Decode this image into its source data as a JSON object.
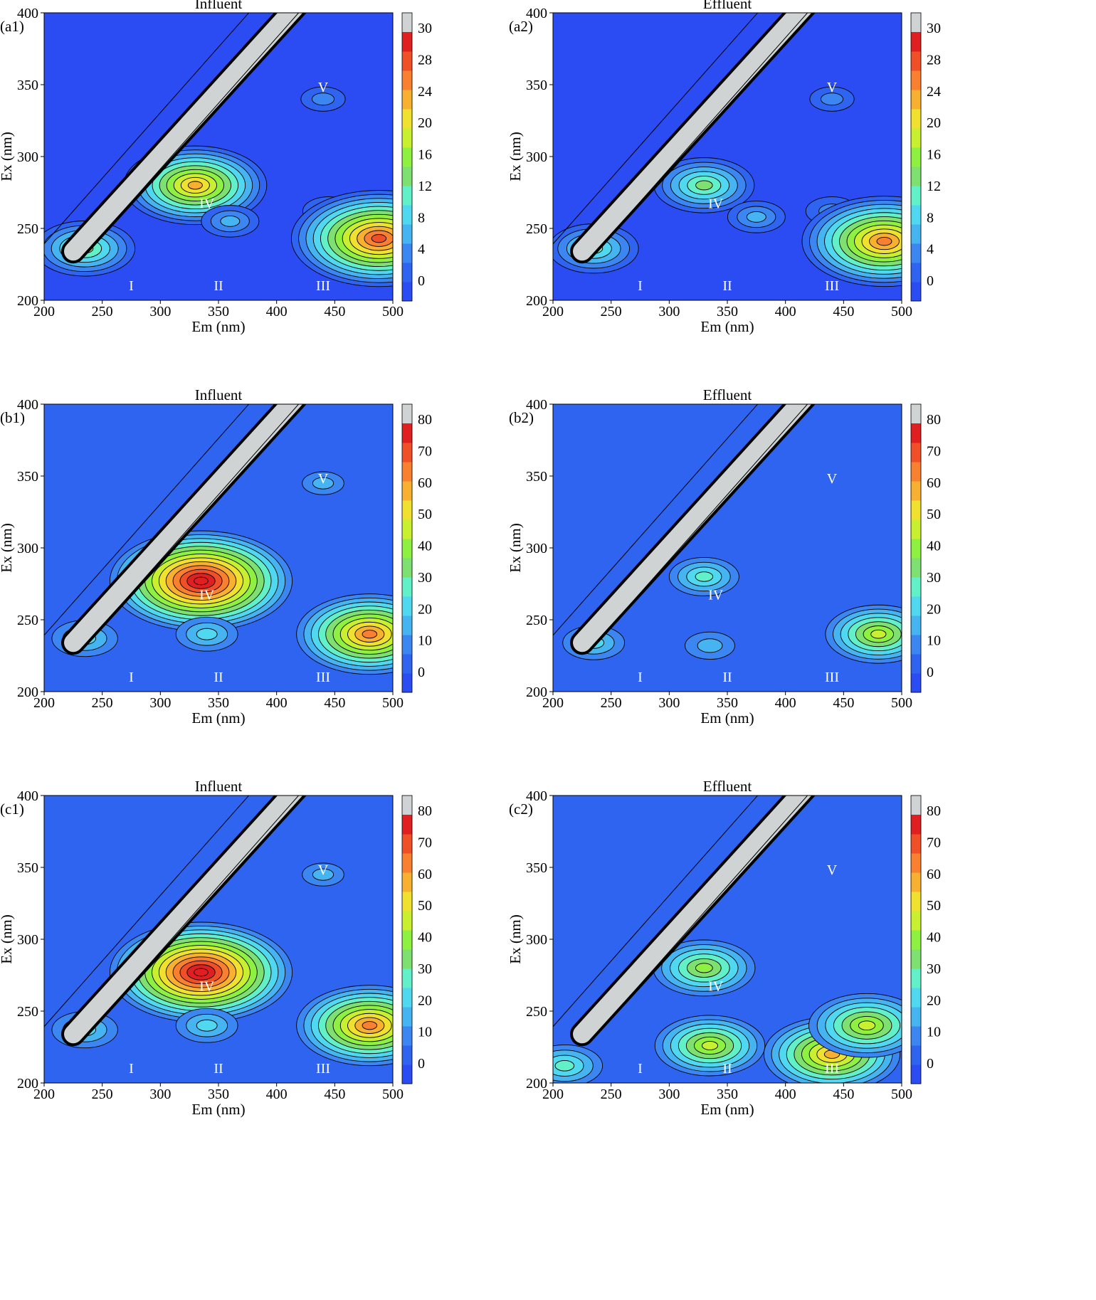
{
  "figure": {
    "panels": [
      {
        "panel_label": "(a1)",
        "title": "Influent",
        "xlabel": "Em (nm)",
        "ylabel": "Ex (nm)",
        "colorbar": {
          "ticks": [
            "0",
            "4",
            "8",
            "12",
            "16",
            "20",
            "24",
            "28",
            "30"
          ],
          "max": 32
        },
        "regions": [
          "I",
          "II",
          "III",
          "IV",
          "V"
        ]
      },
      {
        "panel_label": "(a2)",
        "title": "Effluent",
        "xlabel": "Em (nm)",
        "ylabel": "Ex (nm)",
        "colorbar": {
          "ticks": [
            "0",
            "4",
            "8",
            "12",
            "16",
            "20",
            "24",
            "28",
            "30"
          ],
          "max": 32
        },
        "regions": [
          "I",
          "II",
          "III",
          "IV",
          "V"
        ]
      },
      {
        "panel_label": "(b1)",
        "title": "Influent",
        "xlabel": "Em (nm)",
        "ylabel": "Ex (nm)",
        "colorbar": {
          "ticks": [
            "0",
            "10",
            "20",
            "30",
            "40",
            "50",
            "60",
            "70",
            "80"
          ],
          "max": 85
        },
        "regions": [
          "I",
          "II",
          "III",
          "IV",
          "V"
        ]
      },
      {
        "panel_label": "(b2)",
        "title": "Effluent",
        "xlabel": "Em (nm)",
        "ylabel": "Ex (nm)",
        "colorbar": {
          "ticks": [
            "0",
            "10",
            "20",
            "30",
            "40",
            "50",
            "60",
            "70",
            "80"
          ],
          "max": 85
        },
        "regions": [
          "I",
          "II",
          "III",
          "IV",
          "V"
        ]
      },
      {
        "panel_label": "(c1)",
        "title": "Influent",
        "xlabel": "Em (nm)",
        "ylabel": "Ex (nm)",
        "colorbar": {
          "ticks": [
            "0",
            "10",
            "20",
            "30",
            "40",
            "50",
            "60",
            "70",
            "80"
          ],
          "max": 85
        },
        "regions": [
          "I",
          "II",
          "III",
          "IV",
          "V"
        ]
      },
      {
        "panel_label": "(c2)",
        "title": "Effluent",
        "xlabel": "Em (nm)",
        "ylabel": "Ex (nm)",
        "colorbar": {
          "ticks": [
            "0",
            "10",
            "20",
            "30",
            "40",
            "50",
            "60",
            "70",
            "80"
          ],
          "max": 85
        },
        "regions": [
          "I",
          "II",
          "III",
          "IV",
          "V"
        ]
      }
    ]
  },
  "chart_data": [
    {
      "type": "heatmap",
      "panel": "(a1)",
      "title": "Influent",
      "xlabel": "Em (nm)",
      "ylabel": "Ex (nm)",
      "xlim": [
        200,
        500
      ],
      "ylim": [
        200,
        400
      ],
      "xticks": [
        200,
        250,
        300,
        350,
        400,
        450,
        500
      ],
      "yticks": [
        200,
        250,
        300,
        350,
        400
      ],
      "colorbar_ticks": [
        0,
        4,
        8,
        12,
        16,
        20,
        24,
        28,
        30
      ],
      "background_level": 2,
      "peaks": [
        {
          "em": 330,
          "ex": 280,
          "value": 22
        },
        {
          "em": 360,
          "ex": 255,
          "value": 6
        },
        {
          "em": 445,
          "ex": 262,
          "value": 5
        },
        {
          "em": 440,
          "ex": 340,
          "value": 3.5
        },
        {
          "em": 488,
          "ex": 243,
          "value": 28
        },
        {
          "em": 235,
          "ex": 236,
          "value": 14
        }
      ],
      "regions": [
        {
          "label": "I",
          "em": 275,
          "ex": 207
        },
        {
          "label": "II",
          "em": 350,
          "ex": 207
        },
        {
          "label": "III",
          "em": 440,
          "ex": 207
        },
        {
          "label": "IV",
          "em": 340,
          "ex": 264
        },
        {
          "label": "V",
          "em": 440,
          "ex": 345
        }
      ]
    },
    {
      "type": "heatmap",
      "panel": "(a2)",
      "title": "Effluent",
      "xlabel": "Em (nm)",
      "ylabel": "Ex (nm)",
      "xlim": [
        200,
        500
      ],
      "ylim": [
        200,
        400
      ],
      "xticks": [
        200,
        250,
        300,
        350,
        400,
        450,
        500
      ],
      "yticks": [
        200,
        250,
        300,
        350,
        400
      ],
      "colorbar_ticks": [
        0,
        4,
        8,
        12,
        16,
        20,
        24,
        28,
        30
      ],
      "background_level": 2,
      "peaks": [
        {
          "em": 330,
          "ex": 280,
          "value": 14
        },
        {
          "em": 375,
          "ex": 258,
          "value": 6
        },
        {
          "em": 440,
          "ex": 262,
          "value": 5
        },
        {
          "em": 440,
          "ex": 340,
          "value": 3.5
        },
        {
          "em": 485,
          "ex": 241,
          "value": 26
        },
        {
          "em": 235,
          "ex": 236,
          "value": 12
        }
      ],
      "regions": [
        {
          "label": "I",
          "em": 275,
          "ex": 207
        },
        {
          "label": "II",
          "em": 350,
          "ex": 207
        },
        {
          "label": "III",
          "em": 440,
          "ex": 207
        },
        {
          "label": "IV",
          "em": 340,
          "ex": 264
        },
        {
          "label": "V",
          "em": 440,
          "ex": 345
        }
      ]
    },
    {
      "type": "heatmap",
      "panel": "(b1)",
      "title": "Influent",
      "xlabel": "Em (nm)",
      "ylabel": "Ex (nm)",
      "xlim": [
        200,
        500
      ],
      "ylim": [
        200,
        400
      ],
      "xticks": [
        200,
        250,
        300,
        350,
        400,
        450,
        500
      ],
      "yticks": [
        200,
        250,
        300,
        350,
        400
      ],
      "colorbar_ticks": [
        0,
        10,
        20,
        30,
        40,
        50,
        60,
        70,
        80
      ],
      "background_level": 3,
      "peaks": [
        {
          "em": 335,
          "ex": 277,
          "value": 78
        },
        {
          "em": 340,
          "ex": 240,
          "value": 18
        },
        {
          "em": 440,
          "ex": 345,
          "value": 8
        },
        {
          "em": 480,
          "ex": 240,
          "value": 60
        },
        {
          "em": 235,
          "ex": 237,
          "value": 20
        }
      ],
      "regions": [
        {
          "label": "I",
          "em": 275,
          "ex": 207
        },
        {
          "label": "II",
          "em": 350,
          "ex": 207
        },
        {
          "label": "III",
          "em": 440,
          "ex": 207
        },
        {
          "label": "IV",
          "em": 340,
          "ex": 264
        },
        {
          "label": "V",
          "em": 440,
          "ex": 345
        }
      ]
    },
    {
      "type": "heatmap",
      "panel": "(b2)",
      "title": "Effluent",
      "xlabel": "Em (nm)",
      "ylabel": "Ex (nm)",
      "xlim": [
        200,
        500
      ],
      "ylim": [
        200,
        400
      ],
      "xticks": [
        200,
        250,
        300,
        350,
        400,
        450,
        500
      ],
      "yticks": [
        200,
        250,
        300,
        350,
        400
      ],
      "colorbar_ticks": [
        0,
        10,
        20,
        30,
        40,
        50,
        60,
        70,
        80
      ],
      "background_level": 3,
      "peaks": [
        {
          "em": 330,
          "ex": 280,
          "value": 22
        },
        {
          "em": 335,
          "ex": 232,
          "value": 12
        },
        {
          "em": 480,
          "ex": 240,
          "value": 40
        },
        {
          "em": 235,
          "ex": 234,
          "value": 18
        }
      ],
      "regions": [
        {
          "label": "I",
          "em": 275,
          "ex": 207
        },
        {
          "label": "II",
          "em": 350,
          "ex": 207
        },
        {
          "label": "III",
          "em": 440,
          "ex": 207
        },
        {
          "label": "IV",
          "em": 340,
          "ex": 264
        },
        {
          "label": "V",
          "em": 440,
          "ex": 345
        }
      ]
    },
    {
      "type": "heatmap",
      "panel": "(c1)",
      "title": "Influent",
      "xlabel": "Em (nm)",
      "ylabel": "Ex (nm)",
      "xlim": [
        200,
        500
      ],
      "ylim": [
        200,
        400
      ],
      "xticks": [
        200,
        250,
        300,
        350,
        400,
        450,
        500
      ],
      "yticks": [
        200,
        250,
        300,
        350,
        400
      ],
      "colorbar_ticks": [
        0,
        10,
        20,
        30,
        40,
        50,
        60,
        70,
        80
      ],
      "background_level": 3,
      "peaks": [
        {
          "em": 335,
          "ex": 277,
          "value": 78
        },
        {
          "em": 340,
          "ex": 240,
          "value": 18
        },
        {
          "em": 440,
          "ex": 345,
          "value": 8
        },
        {
          "em": 480,
          "ex": 240,
          "value": 60
        },
        {
          "em": 235,
          "ex": 237,
          "value": 20
        }
      ],
      "regions": [
        {
          "label": "I",
          "em": 275,
          "ex": 207
        },
        {
          "label": "II",
          "em": 350,
          "ex": 207
        },
        {
          "label": "III",
          "em": 440,
          "ex": 207
        },
        {
          "label": "IV",
          "em": 340,
          "ex": 264
        },
        {
          "label": "V",
          "em": 440,
          "ex": 345
        }
      ]
    },
    {
      "type": "heatmap",
      "panel": "(c2)",
      "title": "Effluent",
      "xlabel": "Em (nm)",
      "ylabel": "Ex (nm)",
      "xlim": [
        200,
        500
      ],
      "ylim": [
        200,
        400
      ],
      "xticks": [
        200,
        250,
        300,
        350,
        400,
        450,
        500
      ],
      "yticks": [
        200,
        250,
        300,
        350,
        400
      ],
      "colorbar_ticks": [
        0,
        10,
        20,
        30,
        40,
        50,
        60,
        70,
        80
      ],
      "background_level": 3,
      "peaks": [
        {
          "em": 330,
          "ex": 280,
          "value": 38
        },
        {
          "em": 335,
          "ex": 226,
          "value": 42
        },
        {
          "em": 440,
          "ex": 220,
          "value": 55
        },
        {
          "em": 470,
          "ex": 240,
          "value": 45
        },
        {
          "em": 210,
          "ex": 212,
          "value": 25
        }
      ],
      "regions": [
        {
          "label": "I",
          "em": 275,
          "ex": 207
        },
        {
          "label": "II",
          "em": 350,
          "ex": 207
        },
        {
          "label": "III",
          "em": 440,
          "ex": 207
        },
        {
          "label": "IV",
          "em": 340,
          "ex": 264
        },
        {
          "label": "V",
          "em": 440,
          "ex": 345
        }
      ]
    }
  ],
  "colors": {
    "scale": [
      "#2b4cf2",
      "#2f64f0",
      "#3c86f2",
      "#46b4f0",
      "#50d8f0",
      "#61f0c8",
      "#7de070",
      "#8ef040",
      "#c8f030",
      "#f0e030",
      "#f8b030",
      "#f88030",
      "#f05028",
      "#e02020"
    ],
    "scatter_band": "#cfd3d3",
    "contour": "#000000"
  }
}
